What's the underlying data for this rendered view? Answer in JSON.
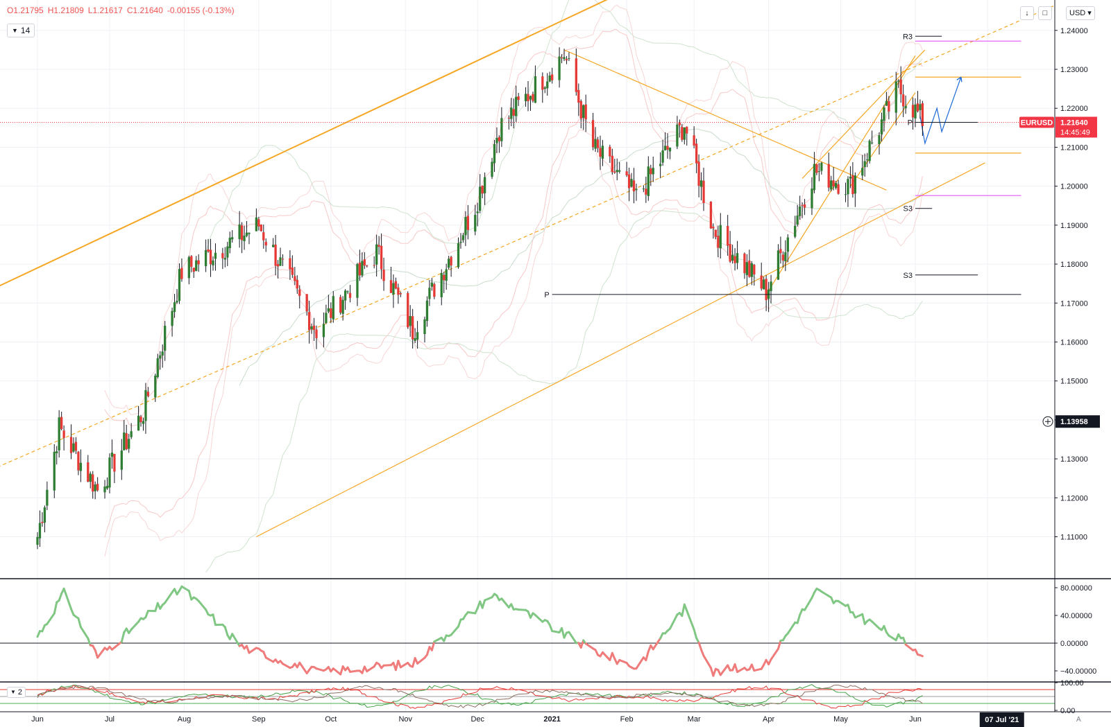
{
  "ohlc": {
    "open": "O1.21795",
    "high": "H1.21809",
    "low": "L1.21617",
    "close": "C1.21640",
    "change": "-0.00155 (-0.13%)"
  },
  "indicator_period": "14",
  "indicator2_label": "2",
  "currency": "USD",
  "toolbar": {
    "scroll_down_icon": "arrow-down-icon",
    "fullscreen_icon": "fullscreen-icon"
  },
  "symbol_tag": {
    "symbol": "EURUSD",
    "price": "1.21640",
    "countdown": "14:45:49"
  },
  "crosshair_price": "1.13958",
  "date_marker": "07 Jul '21",
  "auto_label": "A",
  "colors": {
    "bull": "#2e7d32",
    "bear": "#e53935",
    "trendline": "#f5a623",
    "pivot_pink": "#e040fb",
    "projection": "#1e6ad7",
    "osc_pos": "#81c784",
    "osc_neg": "#ef7b7b",
    "price_tag": "#f23645"
  },
  "chart_data": [
    {
      "type": "candlestick",
      "symbol": "EURUSD",
      "timeframe": "1D",
      "x_ticks": [
        "Jun",
        "Jul",
        "Aug",
        "Sep",
        "Oct",
        "Nov",
        "Dec",
        "2021",
        "Feb",
        "Mar",
        "Apr",
        "May",
        "Jun"
      ],
      "y_ticks": [
        "1.11000",
        "1.12000",
        "1.13000",
        "1.14000",
        "1.15000",
        "1.16000",
        "1.17000",
        "1.18000",
        "1.19000",
        "1.20000",
        "1.21000",
        "1.22000",
        "1.23000",
        "1.24000"
      ],
      "ylim": [
        1.1,
        1.2478
      ],
      "last_price": 1.2164,
      "key_points": [
        {
          "date": "2020-06-01",
          "close": 1.11
        },
        {
          "date": "2020-06-10",
          "close": 1.138
        },
        {
          "date": "2020-06-26",
          "close": 1.122
        },
        {
          "date": "2020-07-15",
          "close": 1.142
        },
        {
          "date": "2020-07-31",
          "close": 1.178
        },
        {
          "date": "2020-09-01",
          "close": 1.19
        },
        {
          "date": "2020-09-25",
          "close": 1.163
        },
        {
          "date": "2020-10-20",
          "close": 1.183
        },
        {
          "date": "2020-11-04",
          "close": 1.163
        },
        {
          "date": "2020-11-30",
          "close": 1.195
        },
        {
          "date": "2020-12-10",
          "close": 1.215
        },
        {
          "date": "2021-01-06",
          "close": 1.234
        },
        {
          "date": "2021-01-18",
          "close": 1.21
        },
        {
          "date": "2021-02-05",
          "close": 1.197
        },
        {
          "date": "2021-02-25",
          "close": 1.216
        },
        {
          "date": "2021-03-09",
          "close": 1.189
        },
        {
          "date": "2021-03-31",
          "close": 1.173
        },
        {
          "date": "2021-04-20",
          "close": 1.204
        },
        {
          "date": "2021-05-05",
          "close": 1.2
        },
        {
          "date": "2021-05-25",
          "close": 1.225
        },
        {
          "date": "2021-06-04",
          "close": 1.217
        }
      ],
      "annotations": [
        {
          "label": "R3",
          "value": 1.2385
        },
        {
          "label": "P",
          "value": 1.1722
        },
        {
          "label": "S3",
          "value": 1.1943
        },
        {
          "label": "S3",
          "value": 1.1772
        },
        {
          "label": "P",
          "value": 1.2164
        }
      ]
    },
    {
      "type": "line",
      "name": "oscillator",
      "y_ticks": [
        "80.00000",
        "40.00000",
        "0.00000",
        "−40.00000"
      ],
      "ylim": [
        -55,
        92
      ],
      "key_points": [
        {
          "date": "2020-06-01",
          "value": 10
        },
        {
          "date": "2020-06-12",
          "value": 72
        },
        {
          "date": "2020-06-26",
          "value": -20
        },
        {
          "date": "2020-07-31",
          "value": 80
        },
        {
          "date": "2020-08-25",
          "value": -5
        },
        {
          "date": "2020-09-25",
          "value": -42
        },
        {
          "date": "2020-11-04",
          "value": -30
        },
        {
          "date": "2020-12-07",
          "value": 70
        },
        {
          "date": "2021-01-18",
          "value": -10
        },
        {
          "date": "2021-02-05",
          "value": -35
        },
        {
          "date": "2021-02-25",
          "value": 50
        },
        {
          "date": "2021-03-09",
          "value": -42
        },
        {
          "date": "2021-03-31",
          "value": -30
        },
        {
          "date": "2021-04-21",
          "value": 75
        },
        {
          "date": "2021-06-04",
          "value": -14
        }
      ]
    },
    {
      "type": "line",
      "name": "directional-index",
      "y_ticks": [
        "100.00",
        "0.00"
      ],
      "ylim": [
        0,
        100
      ]
    }
  ]
}
